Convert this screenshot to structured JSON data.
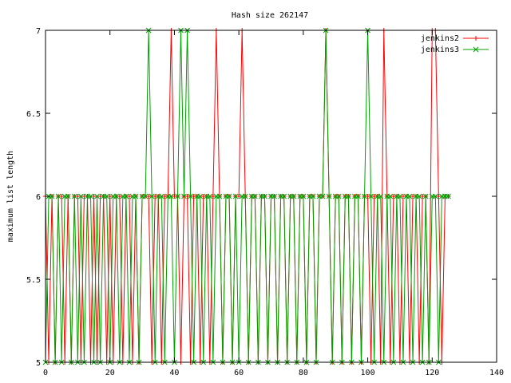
{
  "chart_data": {
    "type": "line",
    "title": "Hash size 262147",
    "xlabel": "",
    "ylabel": "maximum list length",
    "xlim": [
      0,
      140
    ],
    "ylim": [
      5,
      7
    ],
    "xticks": [
      0,
      20,
      40,
      60,
      80,
      100,
      120,
      140
    ],
    "yticks": [
      5,
      5.5,
      6,
      6.5,
      7
    ],
    "xtick_labels": [
      "0",
      "20",
      "40",
      "60",
      "80",
      "100",
      "120",
      "140"
    ],
    "ytick_labels": [
      "5",
      "5.5",
      "6",
      "6.5",
      "7"
    ],
    "grid": false,
    "legend_position": "top-right",
    "series": [
      {
        "name": "jenkins2",
        "color": "#ff0000",
        "marker": "plus",
        "x": [
          0,
          1,
          2,
          3,
          4,
          5,
          6,
          7,
          8,
          9,
          10,
          11,
          12,
          13,
          14,
          15,
          16,
          17,
          18,
          19,
          20,
          21,
          22,
          23,
          24,
          25,
          26,
          27,
          28,
          29,
          30,
          31,
          32,
          33,
          34,
          35,
          36,
          37,
          38,
          39,
          40,
          41,
          42,
          43,
          44,
          45,
          46,
          47,
          48,
          49,
          50,
          51,
          52,
          53,
          54,
          55,
          56,
          57,
          58,
          59,
          60,
          61,
          62,
          63,
          64,
          65,
          66,
          67,
          68,
          69,
          70,
          71,
          72,
          73,
          74,
          75,
          76,
          77,
          78,
          79,
          80,
          81,
          82,
          83,
          84,
          85,
          86,
          87,
          88,
          89,
          90,
          91,
          92,
          93,
          94,
          95,
          96,
          97,
          98,
          99,
          100,
          101,
          102,
          103,
          104,
          105,
          106,
          107,
          108,
          109,
          110,
          111,
          112,
          113,
          114,
          115,
          116,
          117,
          118,
          119,
          120,
          121,
          122,
          123,
          124,
          125
        ],
        "y": [
          6,
          5,
          6,
          5,
          6,
          6,
          5,
          6,
          5,
          6,
          6,
          5,
          6,
          6,
          5,
          6,
          5,
          6,
          6,
          5,
          6,
          5,
          6,
          6,
          5,
          6,
          6,
          5,
          6,
          5,
          6,
          6,
          6,
          5,
          6,
          6,
          5,
          6,
          6,
          7,
          6,
          6,
          5,
          6,
          6,
          5,
          6,
          6,
          5,
          6,
          6,
          5,
          6,
          7,
          6,
          5,
          6,
          6,
          5,
          6,
          6,
          7,
          6,
          5,
          6,
          6,
          5,
          6,
          6,
          5,
          6,
          6,
          5,
          6,
          6,
          5,
          6,
          6,
          5,
          6,
          6,
          5,
          6,
          6,
          5,
          6,
          6,
          7,
          6,
          5,
          6,
          6,
          5,
          6,
          6,
          5,
          6,
          6,
          5,
          6,
          6,
          5,
          6,
          6,
          5,
          7,
          6,
          5,
          6,
          6,
          5,
          6,
          6,
          5,
          6,
          6,
          5,
          6,
          6,
          5,
          7,
          7,
          6,
          5,
          6,
          6
        ]
      },
      {
        "name": "jenkins3",
        "color": "#00a000",
        "marker": "cross",
        "x": [
          0,
          1,
          2,
          3,
          4,
          5,
          6,
          7,
          8,
          9,
          10,
          11,
          12,
          13,
          14,
          15,
          16,
          17,
          18,
          19,
          20,
          21,
          22,
          23,
          24,
          25,
          26,
          27,
          28,
          29,
          30,
          31,
          32,
          33,
          34,
          35,
          36,
          37,
          38,
          39,
          40,
          41,
          42,
          43,
          44,
          45,
          46,
          47,
          48,
          49,
          50,
          51,
          52,
          53,
          54,
          55,
          56,
          57,
          58,
          59,
          60,
          61,
          62,
          63,
          64,
          65,
          66,
          67,
          68,
          69,
          70,
          71,
          72,
          73,
          74,
          75,
          76,
          77,
          78,
          79,
          80,
          81,
          82,
          83,
          84,
          85,
          86,
          87,
          88,
          89,
          90,
          91,
          92,
          93,
          94,
          95,
          96,
          97,
          98,
          99,
          100,
          101,
          102,
          103,
          104,
          105,
          106,
          107,
          108,
          109,
          110,
          111,
          112,
          113,
          114,
          115,
          116,
          117,
          118,
          119,
          120,
          121,
          122,
          123,
          124,
          125
        ],
        "y": [
          5,
          6,
          6,
          5,
          6,
          5,
          6,
          6,
          5,
          6,
          5,
          6,
          5,
          6,
          6,
          5,
          6,
          5,
          6,
          6,
          5,
          6,
          6,
          5,
          6,
          6,
          5,
          6,
          6,
          5,
          6,
          6,
          7,
          6,
          5,
          6,
          6,
          5,
          6,
          6,
          5,
          6,
          7,
          6,
          7,
          6,
          5,
          6,
          6,
          5,
          6,
          6,
          5,
          6,
          6,
          5,
          6,
          6,
          5,
          6,
          5,
          6,
          6,
          5,
          6,
          6,
          5,
          6,
          6,
          5,
          6,
          6,
          5,
          6,
          6,
          5,
          6,
          6,
          5,
          6,
          6,
          5,
          6,
          6,
          5,
          6,
          6,
          7,
          6,
          5,
          6,
          6,
          5,
          6,
          6,
          5,
          6,
          6,
          5,
          6,
          7,
          6,
          5,
          6,
          6,
          5,
          6,
          6,
          5,
          6,
          6,
          5,
          6,
          6,
          5,
          6,
          6,
          5,
          6,
          5,
          6,
          6,
          5,
          6,
          6,
          6
        ]
      }
    ]
  }
}
